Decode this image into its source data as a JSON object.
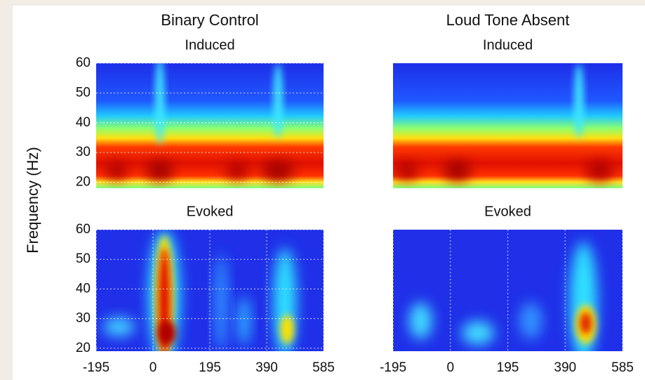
{
  "figure": {
    "ylabel": "Frequency (Hz)"
  },
  "chart_data": [
    {
      "type": "heatmap",
      "title": "Binary Control",
      "subtitle": "Induced",
      "xlim": [
        -195,
        585
      ],
      "ylim": [
        18,
        60
      ],
      "yticks": [
        20,
        30,
        40,
        50,
        60
      ],
      "grid": true
    },
    {
      "type": "heatmap",
      "title": "Loud Tone Absent",
      "subtitle": "Induced",
      "xlim": [
        -195,
        585
      ],
      "ylim": [
        18,
        60
      ],
      "grid": true
    },
    {
      "type": "heatmap",
      "subtitle": "Evoked",
      "xlim": [
        -195,
        585
      ],
      "ylim": [
        19,
        60
      ],
      "xticks": [
        -195,
        0,
        195,
        390,
        585
      ],
      "yticks": [
        20,
        30,
        40,
        50,
        60
      ],
      "grid": true
    },
    {
      "type": "heatmap",
      "subtitle": "Evoked",
      "xlim": [
        -195,
        585
      ],
      "ylim": [
        19,
        60
      ],
      "xticks": [
        -195,
        0,
        195,
        390,
        585
      ],
      "grid": true
    }
  ]
}
